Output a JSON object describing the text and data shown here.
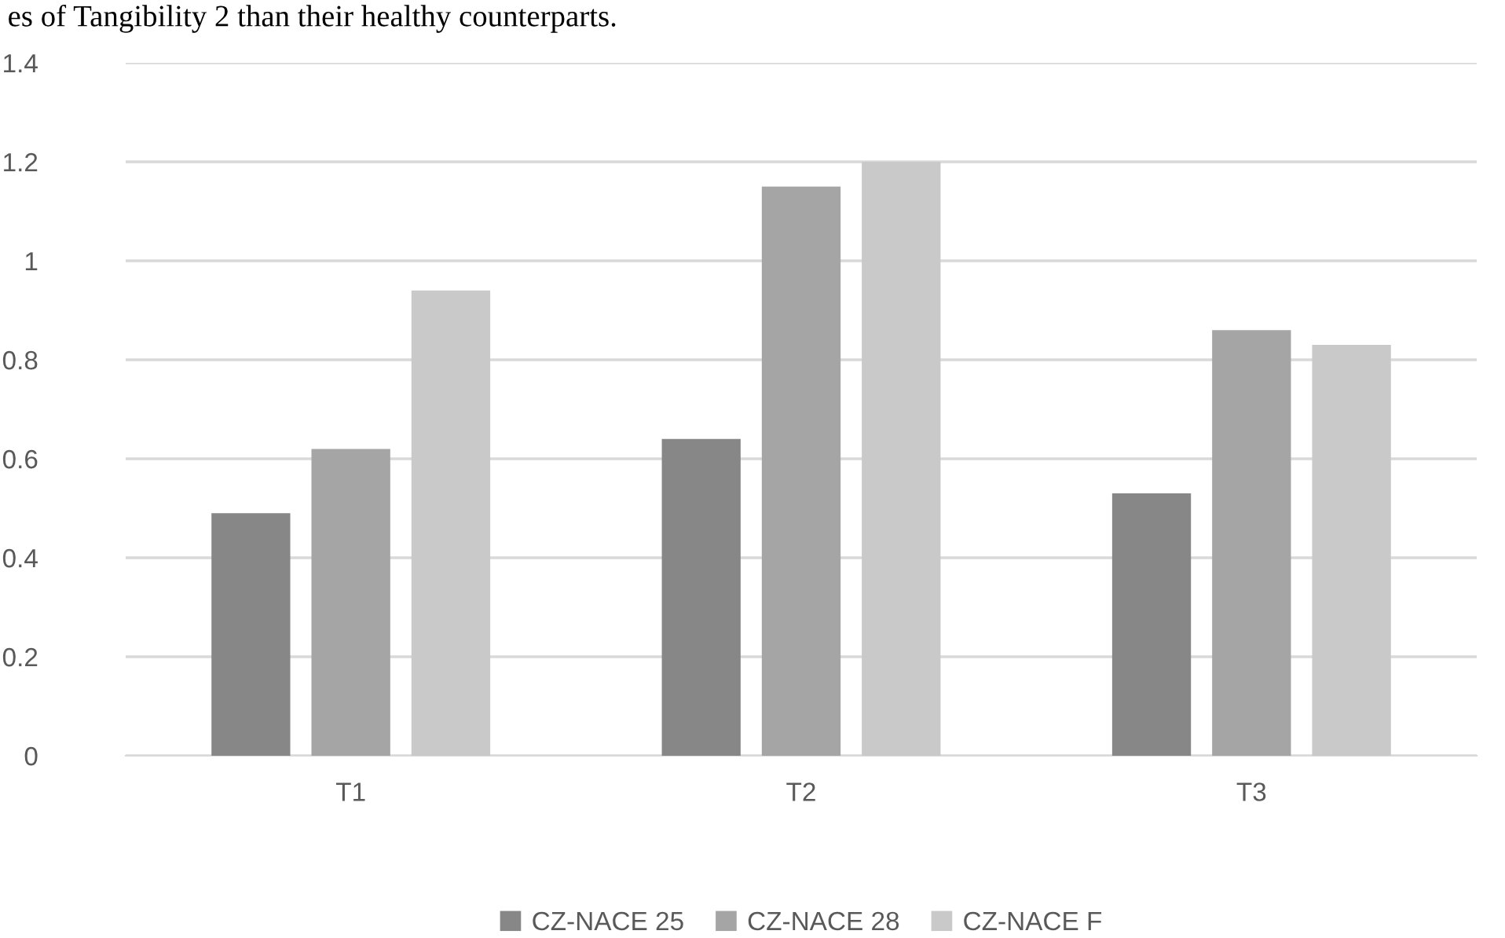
{
  "chart_data": {
    "type": "bar",
    "categories": [
      "T1",
      "T2",
      "T3"
    ],
    "series": [
      {
        "name": "CZ-NACE 25",
        "color": "#878787",
        "values": [
          0.49,
          0.64,
          0.53
        ]
      },
      {
        "name": "CZ-NACE 28",
        "color": "#a5a5a5",
        "values": [
          0.62,
          1.15,
          0.86
        ]
      },
      {
        "name": "CZ-NACE F",
        "color": "#c9c9c9",
        "values": [
          0.94,
          1.2,
          0.83
        ]
      }
    ],
    "ylim": [
      0,
      1.4
    ],
    "yticks": [
      0,
      0.2,
      0.4,
      0.6,
      0.8,
      1,
      1.2,
      1.4
    ],
    "grid": "y",
    "legend": "bottom",
    "annotations": [
      "es of Tangibility 2 than their healthy counterparts."
    ]
  }
}
